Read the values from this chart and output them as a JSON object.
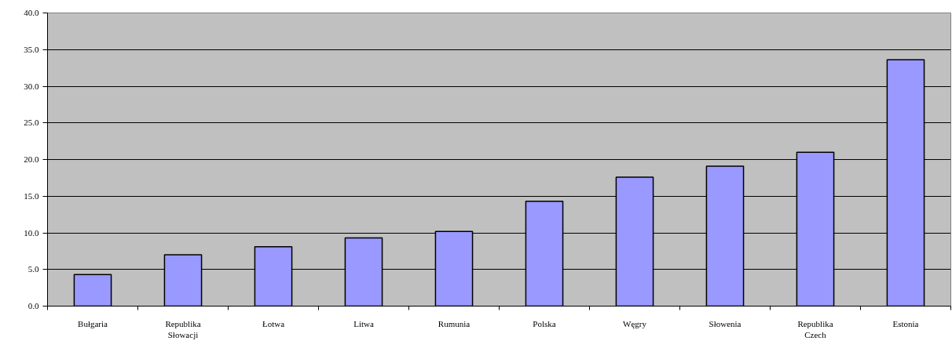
{
  "chart_data": {
    "type": "bar",
    "categories": [
      "Bułgaria",
      "Republika\nSłowacji",
      "Łotwa",
      "Litwa",
      "Rumunia",
      "Polska",
      "Węgry",
      "Słowenia",
      "Republika\nCzech",
      "Estonia"
    ],
    "values": [
      4.3,
      7.0,
      8.1,
      9.3,
      10.2,
      14.3,
      17.6,
      19.1,
      21.0,
      33.6
    ],
    "color": "#9999ff",
    "ylim": [
      0,
      40
    ],
    "yticks": [
      {
        "value": 0,
        "label": "0.0"
      },
      {
        "value": 5,
        "label": "5.0"
      },
      {
        "value": 10,
        "label": "10.0"
      },
      {
        "value": 15,
        "label": "15.0"
      },
      {
        "value": 20,
        "label": "20.0"
      },
      {
        "value": 25,
        "label": "25.0"
      },
      {
        "value": 30,
        "label": "30.0"
      },
      {
        "value": 35,
        "label": "35.0"
      },
      {
        "value": 40,
        "label": "40.0"
      }
    ],
    "grid": "y"
  }
}
